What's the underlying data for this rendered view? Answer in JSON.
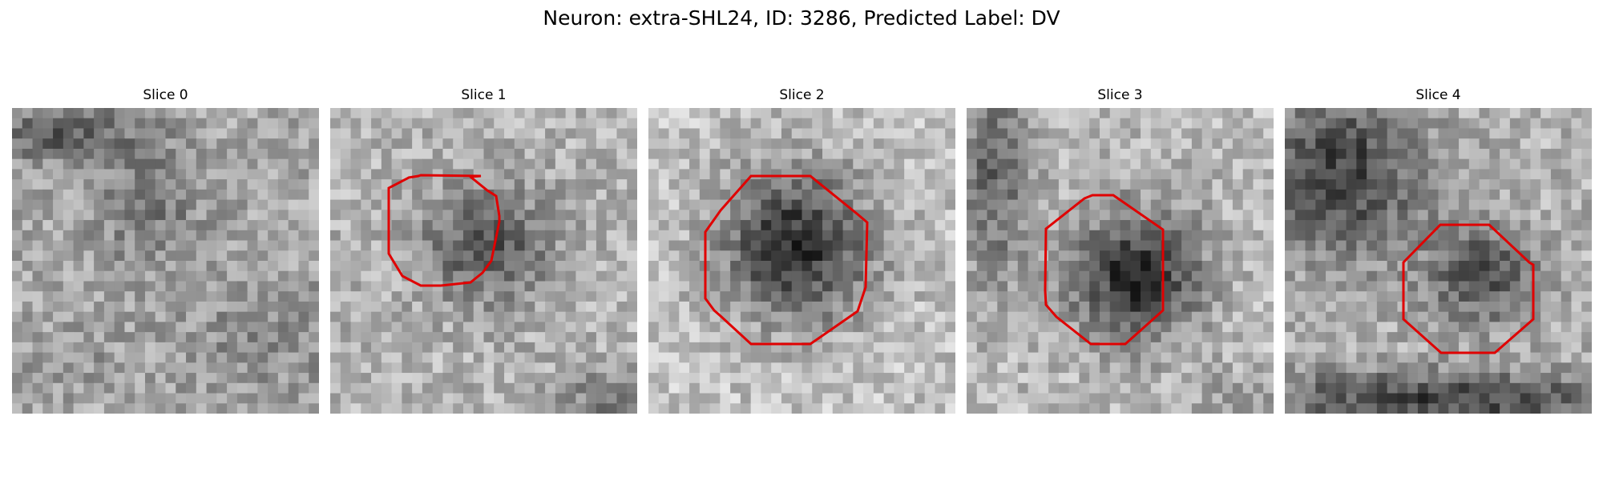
{
  "figure": {
    "title": "Neuron: extra-SHL24, ID: 3286, Predicted Label: DV"
  },
  "outline_color": "#e00000",
  "colormap": "gray",
  "panels": [
    {
      "title": "Slice 0",
      "has_outline": false,
      "blobs": [
        {
          "cx": 4,
          "cy": 2,
          "rx": 8,
          "ry": 3,
          "a": -0.3
        },
        {
          "cx": 13,
          "cy": 9,
          "rx": 6,
          "ry": 7,
          "a": -0.18
        },
        {
          "cx": 24,
          "cy": 22,
          "rx": 9,
          "ry": 6,
          "a": -0.12
        },
        {
          "cx": 5,
          "cy": 24,
          "rx": 5,
          "ry": 3,
          "a": -0.08
        }
      ],
      "base": 0.66
    },
    {
      "title": "Slice 1",
      "has_outline": true,
      "blobs": [
        {
          "cx": 15,
          "cy": 13,
          "rx": 7,
          "ry": 6,
          "a": -0.36
        },
        {
          "cx": 27,
          "cy": 28,
          "rx": 6,
          "ry": 3,
          "a": -0.22
        }
      ],
      "base": 0.7
    },
    {
      "title": "Slice 2",
      "has_outline": true,
      "blobs": [
        {
          "cx": 14,
          "cy": 13,
          "rx": 8,
          "ry": 8,
          "a": -0.58
        }
      ],
      "base": 0.76
    },
    {
      "title": "Slice 3",
      "has_outline": true,
      "blobs": [
        {
          "cx": 16,
          "cy": 16,
          "rx": 7,
          "ry": 7,
          "a": -0.55
        },
        {
          "cx": 2,
          "cy": 6,
          "rx": 4,
          "ry": 12,
          "a": -0.32
        },
        {
          "cx": 27,
          "cy": 28,
          "rx": 5,
          "ry": 3,
          "a": -0.15
        }
      ],
      "base": 0.73
    },
    {
      "title": "Slice 4",
      "has_outline": true,
      "blobs": [
        {
          "cx": 5,
          "cy": 6,
          "rx": 9,
          "ry": 9,
          "a": -0.45
        },
        {
          "cx": 19,
          "cy": 16,
          "rx": 6,
          "ry": 5,
          "a": -0.4
        },
        {
          "cx": 15,
          "cy": 28,
          "rx": 20,
          "ry": 3,
          "a": -0.45
        }
      ],
      "base": 0.7
    }
  ]
}
